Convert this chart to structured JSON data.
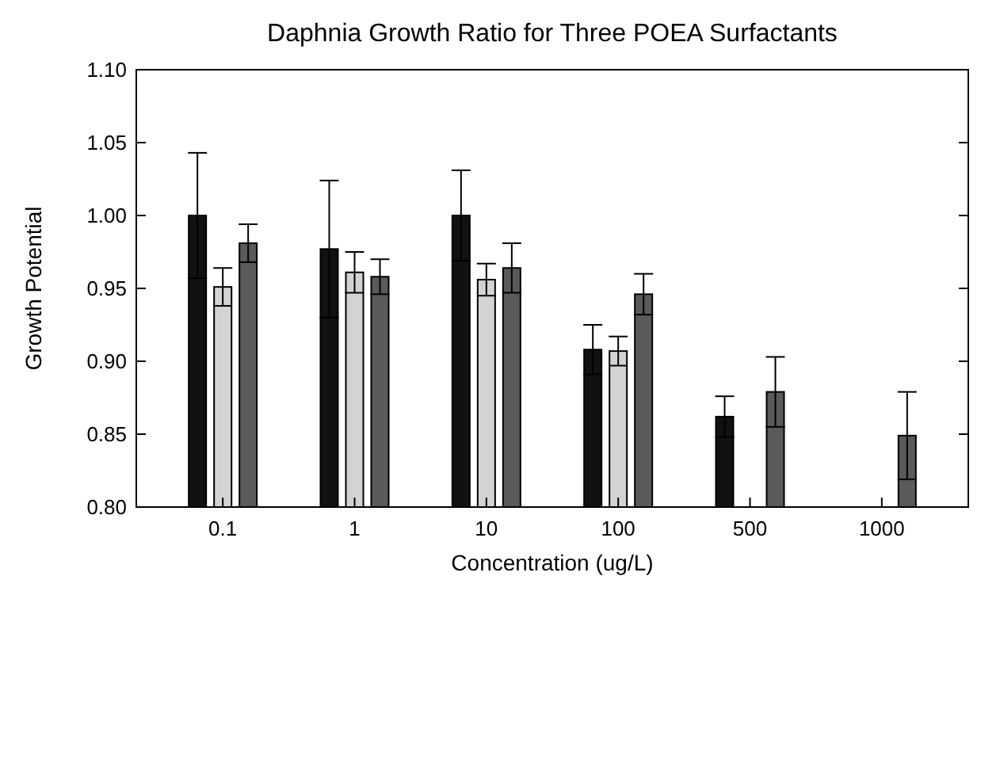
{
  "chart_data": {
    "type": "bar",
    "title": "Daphnia Growth Ratio for Three POEA Surfactants",
    "xlabel": "Concentration (ug/L)",
    "ylabel": "Growth Potential",
    "categories": [
      "0.1",
      "1",
      "10",
      "100",
      "500",
      "1000"
    ],
    "series": [
      {
        "color": "#111111",
        "values": [
          1.0,
          0.977,
          1.0,
          0.908,
          0.862,
          null
        ],
        "errors": [
          0.043,
          0.047,
          0.031,
          0.017,
          0.014,
          null
        ]
      },
      {
        "color": "#d3d3d3",
        "values": [
          0.951,
          0.961,
          0.956,
          0.907,
          null,
          null
        ],
        "errors": [
          0.013,
          0.014,
          0.011,
          0.01,
          null,
          null
        ]
      },
      {
        "color": "#5a5a5a",
        "values": [
          0.981,
          0.958,
          0.964,
          0.946,
          0.879,
          0.849
        ],
        "errors": [
          0.013,
          0.012,
          0.017,
          0.014,
          0.024,
          0.03
        ]
      }
    ],
    "ylim": [
      0.8,
      1.1
    ],
    "yticks": [
      {
        "value": 0.8,
        "label": "0.80"
      },
      {
        "value": 0.85,
        "label": "0.85"
      },
      {
        "value": 0.9,
        "label": "0.90"
      },
      {
        "value": 0.95,
        "label": "0.95"
      },
      {
        "value": 1.0,
        "label": "1.00"
      },
      {
        "value": 1.05,
        "label": "1.05"
      },
      {
        "value": 1.1,
        "label": "1.10"
      }
    ],
    "grid": false
  }
}
